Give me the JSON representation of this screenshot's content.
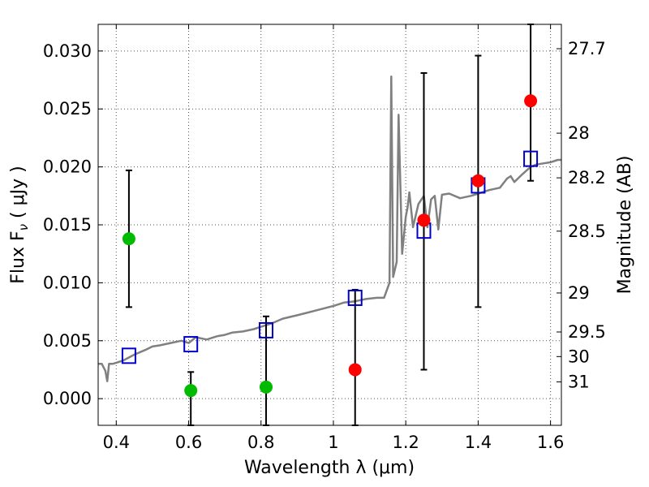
{
  "chart_data": {
    "type": "scatter",
    "xlabel": "Wavelength  λ (μm)",
    "ylabel": "Flux  F",
    "ylabel_sub": "ν",
    "ylabel_unit": "  ( μJy )",
    "y2label": "Magnitude (AB)",
    "xlim": [
      0.35,
      1.63
    ],
    "ylim": [
      -0.0023,
      0.0323
    ],
    "grid": true,
    "x_ticks": [
      0.4,
      0.6,
      0.8,
      1.0,
      1.2,
      1.4,
      1.6
    ],
    "x_tick_labels": [
      "0.4",
      "0.6",
      "0.8",
      "1",
      "1.2",
      "1.4",
      "1.6"
    ],
    "y_ticks": [
      0.0,
      0.005,
      0.01,
      0.015,
      0.02,
      0.025,
      0.03
    ],
    "y_tick_labels": [
      "0.000",
      "0.005",
      "0.010",
      "0.015",
      "0.020",
      "0.025",
      "0.030"
    ],
    "y2_ticks": [
      27.7,
      28.0,
      28.2,
      28.5,
      29.0,
      29.5,
      30.0,
      31.0
    ],
    "y2_tick_labels": [
      "27.7",
      "28",
      "28.2",
      "28.5",
      "29",
      "29.5",
      "30",
      "31"
    ],
    "colors": {
      "sed_line": "#808080",
      "model_box": "#0000cc",
      "detection": "#ff0000",
      "non_detection": "#00bb00",
      "errorbar": "#000000",
      "grid": "#555555"
    },
    "model_photometry": {
      "marker": "open-square",
      "x": [
        0.435,
        0.606,
        0.814,
        1.06,
        1.25,
        1.4,
        1.545
      ],
      "y": [
        0.0037,
        0.0047,
        0.0059,
        0.0087,
        0.0145,
        0.0184,
        0.0207
      ]
    },
    "observed_photometry": [
      {
        "x": 0.435,
        "y": 0.0138,
        "yerr_low": 0.0079,
        "yerr_high": 0.0197,
        "detected": false
      },
      {
        "x": 0.606,
        "y": 0.0007,
        "yerr_low": -0.0023,
        "yerr_high": 0.0023,
        "detected": false
      },
      {
        "x": 0.814,
        "y": 0.001,
        "yerr_low": -0.0023,
        "yerr_high": 0.0071,
        "detected": false
      },
      {
        "x": 1.06,
        "y": 0.0025,
        "yerr_low": -0.0023,
        "yerr_high": 0.0094,
        "detected": true
      },
      {
        "x": 1.25,
        "y": 0.0154,
        "yerr_low": 0.0025,
        "yerr_high": 0.0281,
        "detected": true
      },
      {
        "x": 1.4,
        "y": 0.0188,
        "yerr_low": 0.0079,
        "yerr_high": 0.0296,
        "detected": true
      },
      {
        "x": 1.545,
        "y": 0.0257,
        "yerr_low": 0.0188,
        "yerr_high": 0.0323,
        "detected": true
      }
    ],
    "sed_model": {
      "x": [
        0.35,
        0.36,
        0.37,
        0.375,
        0.38,
        0.39,
        0.4,
        0.42,
        0.45,
        0.48,
        0.5,
        0.52,
        0.55,
        0.58,
        0.6,
        0.62,
        0.65,
        0.68,
        0.7,
        0.72,
        0.75,
        0.78,
        0.8,
        0.83,
        0.86,
        0.9,
        0.95,
        1.0,
        1.03,
        1.06,
        1.09,
        1.12,
        1.14,
        1.155,
        1.16,
        1.165,
        1.175,
        1.18,
        1.19,
        1.2,
        1.205,
        1.21,
        1.22,
        1.235,
        1.25,
        1.26,
        1.27,
        1.28,
        1.29,
        1.3,
        1.32,
        1.35,
        1.38,
        1.4,
        1.43,
        1.46,
        1.48,
        1.49,
        1.5,
        1.52,
        1.545,
        1.56,
        1.58,
        1.6,
        1.62,
        1.63
      ],
      "y": [
        0.003,
        0.003,
        0.0024,
        0.0015,
        0.003,
        0.003,
        0.0031,
        0.0033,
        0.0038,
        0.0042,
        0.0045,
        0.0046,
        0.0048,
        0.005,
        0.0048,
        0.0053,
        0.0051,
        0.0054,
        0.0055,
        0.0057,
        0.0058,
        0.006,
        0.0062,
        0.0065,
        0.0069,
        0.0072,
        0.0076,
        0.008,
        0.0083,
        0.0084,
        0.0086,
        0.0087,
        0.0087,
        0.01,
        0.0278,
        0.0105,
        0.0118,
        0.0245,
        0.0125,
        0.0157,
        0.0165,
        0.0178,
        0.0148,
        0.0168,
        0.0175,
        0.0148,
        0.0172,
        0.0175,
        0.0146,
        0.0176,
        0.0177,
        0.0173,
        0.0175,
        0.0177,
        0.018,
        0.0182,
        0.019,
        0.0192,
        0.0187,
        0.0193,
        0.02,
        0.0202,
        0.0203,
        0.0204,
        0.0206,
        0.0206
      ]
    }
  }
}
